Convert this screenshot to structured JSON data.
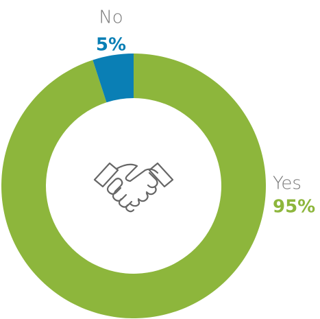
{
  "chart_data": {
    "type": "donut",
    "categories": [
      "Yes",
      "No"
    ],
    "values": [
      95,
      5
    ],
    "value_labels": [
      "95%",
      "5%"
    ],
    "colors": [
      "#8db63c",
      "#0a7fb5"
    ]
  }
}
